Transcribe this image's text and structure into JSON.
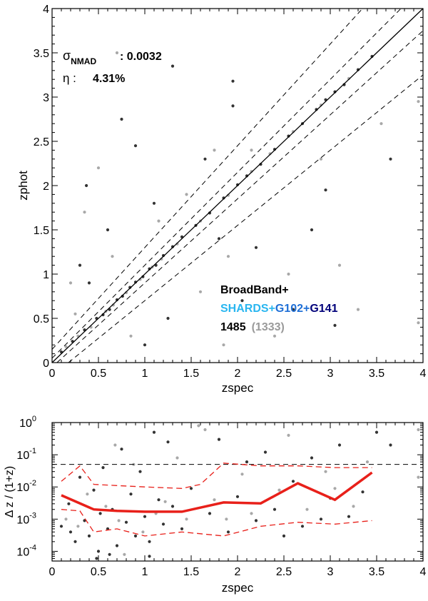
{
  "chart_data": [
    {
      "type": "scatter",
      "xlabel": "zspec",
      "ylabel": "zphot",
      "xlim": [
        0,
        4
      ],
      "ylim": [
        0,
        4
      ],
      "xticks": [
        "0",
        "0.5",
        "1",
        "1.5",
        "2",
        "2.5",
        "3",
        "3.5",
        "4"
      ],
      "yticks": [
        "0",
        "0.5",
        "1",
        "1.5",
        "2",
        "2.5",
        "3",
        "3.5",
        "4"
      ],
      "stats": {
        "sigma_symbol": "σ",
        "sigma_sub": "NMAD",
        "sigma_value": ": 0.0032",
        "eta_symbol": "η :",
        "eta_value": "4.31%"
      },
      "legend": {
        "line1": "BroadBand+",
        "line2_a": "SHARDS+",
        "line2_b": "G102+",
        "line2_c": "G141",
        "count_all": "1485",
        "count_sub": "(1333)"
      },
      "colors": {
        "shards": "#29b6f0",
        "g102": "#1f6fd6",
        "g141": "#00007a",
        "dark_points": "#333333",
        "gray_points": "#a8a8a8"
      },
      "lines": [
        {
          "kind": "one-to-one",
          "style": "solid",
          "x": [
            0,
            4
          ],
          "y": [
            0,
            4
          ]
        },
        {
          "kind": "envelope",
          "style": "dashed",
          "offsets": [
            -0.15,
            -0.05,
            0.05,
            0.15
          ]
        }
      ],
      "series": [
        {
          "name": "1485",
          "color": "#333333",
          "points": [
            [
              0.1,
              0.12
            ],
            [
              0.22,
              0.24
            ],
            [
              0.35,
              0.37
            ],
            [
              0.48,
              0.5
            ],
            [
              0.55,
              0.54
            ],
            [
              0.62,
              0.6
            ],
            [
              0.7,
              0.71
            ],
            [
              0.76,
              0.75
            ],
            [
              0.84,
              0.85
            ],
            [
              0.9,
              0.91
            ],
            [
              0.98,
              0.97
            ],
            [
              1.05,
              1.06
            ],
            [
              1.12,
              1.1
            ],
            [
              1.2,
              1.21
            ],
            [
              1.3,
              1.31
            ],
            [
              1.4,
              1.42
            ],
            [
              1.55,
              1.55
            ],
            [
              1.7,
              1.69
            ],
            [
              1.85,
              1.86
            ],
            [
              2.0,
              2.01
            ],
            [
              2.1,
              2.11
            ],
            [
              2.25,
              2.24
            ],
            [
              2.4,
              2.41
            ],
            [
              2.55,
              2.56
            ],
            [
              2.7,
              2.7
            ],
            [
              2.85,
              2.86
            ],
            [
              2.95,
              2.97
            ],
            [
              3.05,
              3.06
            ],
            [
              3.15,
              3.14
            ],
            [
              3.3,
              3.31
            ],
            [
              3.45,
              3.46
            ],
            [
              0.3,
              1.1
            ],
            [
              0.4,
              0.9
            ],
            [
              0.6,
              1.5
            ],
            [
              0.75,
              2.75
            ],
            [
              1.0,
              0.2
            ],
            [
              1.1,
              1.8
            ],
            [
              1.25,
              0.5
            ],
            [
              1.3,
              3.35
            ],
            [
              1.65,
              2.3
            ],
            [
              1.8,
              1.4
            ],
            [
              1.95,
              3.18
            ],
            [
              2.05,
              0.7
            ],
            [
              2.2,
              1.3
            ],
            [
              2.6,
              0.6
            ],
            [
              2.8,
              1.5
            ],
            [
              3.05,
              0.42
            ],
            [
              3.65,
              2.3
            ],
            [
              0.37,
              2.0
            ],
            [
              0.9,
              2.45
            ],
            [
              1.95,
              2.9
            ],
            [
              2.95,
              1.95
            ]
          ]
        },
        {
          "name": "(1333)",
          "color": "#a8a8a8",
          "points": [
            [
              0.15,
              0.18
            ],
            [
              0.28,
              0.3
            ],
            [
              0.42,
              0.4
            ],
            [
              0.58,
              0.58
            ],
            [
              0.66,
              0.65
            ],
            [
              0.8,
              0.79
            ],
            [
              0.95,
              0.94
            ],
            [
              1.08,
              1.08
            ],
            [
              1.18,
              1.17
            ],
            [
              1.35,
              1.34
            ],
            [
              1.6,
              1.6
            ],
            [
              1.9,
              1.89
            ],
            [
              2.15,
              2.16
            ],
            [
              2.35,
              2.36
            ],
            [
              2.6,
              2.61
            ],
            [
              2.9,
              2.91
            ],
            [
              3.2,
              3.21
            ],
            [
              0.2,
              0.9
            ],
            [
              0.35,
              1.7
            ],
            [
              0.5,
              2.2
            ],
            [
              0.65,
              1.2
            ],
            [
              0.85,
              0.3
            ],
            [
              1.15,
              1.6
            ],
            [
              1.45,
              1.9
            ],
            [
              1.6,
              0.8
            ],
            [
              1.85,
              0.2
            ],
            [
              1.9,
              1.2
            ],
            [
              2.15,
              2.4
            ],
            [
              2.4,
              0.3
            ],
            [
              2.55,
              1.0
            ],
            [
              2.9,
              2.3
            ],
            [
              3.1,
              1.1
            ],
            [
              3.3,
              0.6
            ],
            [
              3.95,
              0.45
            ],
            [
              3.95,
              2.95
            ],
            [
              0.7,
              3.5
            ],
            [
              0.25,
              0.55
            ],
            [
              1.75,
              2.4
            ],
            [
              3.55,
              2.7
            ]
          ]
        }
      ]
    },
    {
      "type": "scatter",
      "xlabel": "zspec",
      "ylabel": "Δ z / (1+z)",
      "xlim": [
        0,
        4
      ],
      "ylim": [
        5e-05,
        1
      ],
      "yscale": "log",
      "xticks": [
        "0",
        "0.5",
        "1",
        "1.5",
        "2",
        "2.5",
        "3",
        "3.5",
        "4"
      ],
      "yticks": [
        {
          "base": "10",
          "exp": "0"
        },
        {
          "base": "10",
          "exp": "-1"
        },
        {
          "base": "10",
          "exp": "-2"
        },
        {
          "base": "10",
          "exp": "-3"
        },
        {
          "base": "10",
          "exp": "-4"
        }
      ],
      "threshold": 0.05,
      "median": {
        "color": "#e8201a",
        "x": [
          0.1,
          0.45,
          0.7,
          1.0,
          1.4,
          1.85,
          2.25,
          2.65,
          3.05,
          3.45
        ],
        "y": [
          0.0055,
          0.002,
          0.0018,
          0.0017,
          0.0017,
          0.0033,
          0.0031,
          0.013,
          0.004,
          0.028
        ]
      },
      "upper_envelope": {
        "x": [
          0.1,
          0.3,
          0.45,
          0.7,
          1.0,
          1.4,
          1.6,
          1.85,
          2.25,
          2.65,
          3.05,
          3.45
        ],
        "y": [
          0.015,
          0.045,
          0.012,
          0.011,
          0.01,
          0.009,
          0.012,
          0.055,
          0.045,
          0.045,
          0.04,
          0.04
        ]
      },
      "lower_envelope": {
        "x": [
          0.1,
          0.3,
          0.45,
          0.7,
          1.0,
          1.4,
          1.85,
          2.25,
          2.65,
          3.05,
          3.45
        ],
        "y": [
          0.002,
          0.0018,
          0.0004,
          0.0005,
          0.0003,
          0.0004,
          0.0003,
          0.0006,
          0.0008,
          0.0007,
          0.0009
        ]
      },
      "series": [
        {
          "name": "1485",
          "color": "#333333",
          "points": [
            [
              0.1,
              0.0006
            ],
            [
              0.18,
              0.003
            ],
            [
              0.25,
              0.0002
            ],
            [
              0.3,
              0.02
            ],
            [
              0.35,
              0.0009
            ],
            [
              0.4,
              0.0003
            ],
            [
              0.45,
              0.008
            ],
            [
              0.5,
              0.0001
            ],
            [
              0.52,
              0.0015
            ],
            [
              0.55,
              0.04
            ],
            [
              0.6,
              0.0005
            ],
            [
              0.65,
              0.002
            ],
            [
              0.7,
              0.00015
            ],
            [
              0.75,
              0.15
            ],
            [
              0.8,
              0.0008
            ],
            [
              0.85,
              0.006
            ],
            [
              0.9,
              0.0003
            ],
            [
              0.95,
              0.03
            ],
            [
              1.0,
              0.0012
            ],
            [
              1.05,
              0.0002
            ],
            [
              1.1,
              0.5
            ],
            [
              1.15,
              0.004
            ],
            [
              1.2,
              0.0007
            ],
            [
              1.25,
              0.25
            ],
            [
              1.3,
              0.0025
            ],
            [
              1.4,
              0.0005
            ],
            [
              1.5,
              0.009
            ],
            [
              1.7,
              0.0015
            ],
            [
              1.8,
              0.3
            ],
            [
              1.9,
              0.0004
            ],
            [
              2.0,
              0.005
            ],
            [
              2.1,
              0.06
            ],
            [
              2.2,
              0.0009
            ],
            [
              2.3,
              0.12
            ],
            [
              2.4,
              0.002
            ],
            [
              2.5,
              0.0003
            ],
            [
              2.6,
              0.015
            ],
            [
              2.7,
              0.0006
            ],
            [
              2.8,
              0.08
            ],
            [
              2.9,
              0.001
            ],
            [
              3.0,
              0.0045
            ],
            [
              3.1,
              0.2
            ],
            [
              3.2,
              0.0012
            ],
            [
              3.35,
              0.007
            ],
            [
              3.5,
              0.5
            ],
            [
              3.65,
              0.2
            ],
            [
              0.2,
              0.0004
            ],
            [
              0.48,
              6e-05
            ],
            [
              0.62,
              8e-05
            ],
            [
              1.05,
              7e-05
            ]
          ]
        },
        {
          "name": "(1333)",
          "color": "#a8a8a8",
          "points": [
            [
              0.15,
              0.001
            ],
            [
              0.28,
              0.0006
            ],
            [
              0.38,
              0.006
            ],
            [
              0.58,
              0.0025
            ],
            [
              0.68,
              0.2
            ],
            [
              0.72,
              0.0009
            ],
            [
              0.88,
              0.05
            ],
            [
              0.98,
              0.0004
            ],
            [
              1.12,
              0.0015
            ],
            [
              1.22,
              0.0035
            ],
            [
              1.35,
              0.08
            ],
            [
              1.45,
              0.001
            ],
            [
              1.65,
              0.6
            ],
            [
              1.75,
              0.004
            ],
            [
              1.88,
              0.001
            ],
            [
              2.05,
              0.025
            ],
            [
              2.15,
              0.0015
            ],
            [
              2.45,
              0.008
            ],
            [
              2.55,
              0.4
            ],
            [
              2.75,
              0.002
            ],
            [
              2.95,
              0.03
            ],
            [
              3.05,
              0.009
            ],
            [
              3.25,
              0.0025
            ],
            [
              3.4,
              0.06
            ],
            [
              3.95,
              0.6
            ],
            [
              3.95,
              0.02
            ],
            [
              0.78,
              8e-05
            ],
            [
              1.58,
              0.8
            ]
          ]
        }
      ]
    }
  ]
}
